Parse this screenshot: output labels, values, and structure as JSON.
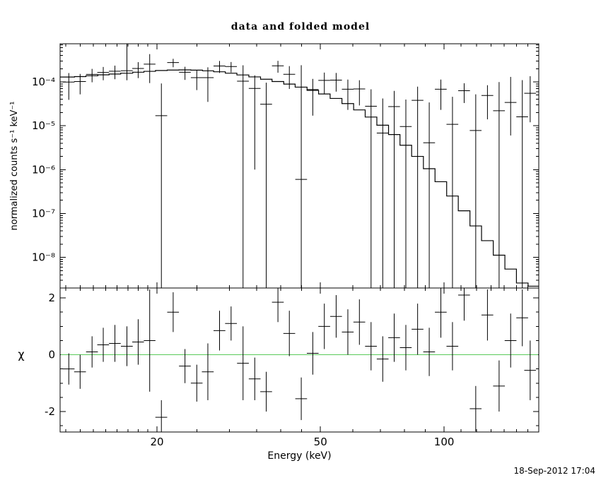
{
  "chart_data": {
    "type": "scatter",
    "title": "data and folded model",
    "xlabel": "Energy (keV)",
    "ylabel_top": "normalized counts s⁻¹ keV⁻¹",
    "ylabel_bottom": "χ",
    "timestamp": "18-Sep-2012 17:04",
    "x_scale": "log",
    "x_range": [
      11.62,
      170
    ],
    "x_ticks_labeled": [
      20,
      50,
      100
    ],
    "x_ticks_minor": [
      12,
      13,
      14,
      15,
      16,
      17,
      18,
      19,
      25,
      30,
      35,
      40,
      45,
      60,
      70,
      80,
      90,
      110,
      120,
      130,
      140,
      150,
      160
    ],
    "axis_color": "#000000",
    "top_panel": {
      "y_scale": "log",
      "y_range": [
        2e-09,
        0.00074
      ],
      "y_ticks_exponents": [
        -4,
        -5,
        -6,
        -7,
        -8
      ],
      "y_tick_labels": [
        "10⁻⁴",
        "10⁻⁵",
        "10⁻⁶",
        "10⁻⁷",
        "10⁻⁸"
      ],
      "model_color": "#000000",
      "points": [
        {
          "e": 12.2,
          "ew": 0.4,
          "y": 9.9e-05,
          "lo": 3.9e-05,
          "hi": 0.000159,
          "model": 0.000129
        },
        {
          "e": 13.0,
          "ew": 0.43,
          "y": 0.000102,
          "lo": 5.2e-05,
          "hi": 0.000152,
          "model": 0.000132
        },
        {
          "e": 13.9,
          "ew": 0.46,
          "y": 0.000148,
          "lo": 9.8e-05,
          "hi": 0.000198,
          "model": 0.000138
        },
        {
          "e": 14.8,
          "ew": 0.49,
          "y": 0.000164,
          "lo": 0.000109,
          "hi": 0.000219,
          "model": 0.000145
        },
        {
          "e": 15.8,
          "ew": 0.52,
          "y": 0.000175,
          "lo": 0.000115,
          "hi": 0.000235,
          "model": 0.000151
        },
        {
          "e": 16.9,
          "ew": 0.56,
          "y": 0.000179,
          "lo": 0.000109,
          "hi": 0.0008,
          "model": 0.000158
        },
        {
          "e": 18.0,
          "ew": 0.59,
          "y": 0.000202,
          "lo": 0.000122,
          "hi": 0.000282,
          "model": 0.000166
        },
        {
          "e": 19.2,
          "ew": 0.63,
          "y": 0.000254,
          "lo": 9.4e-05,
          "hi": 0.00043,
          "model": 0.000174
        },
        {
          "e": 20.5,
          "ew": 0.68,
          "y": 1.7e-05,
          "lo": null,
          "hi": 9.2e-05,
          "model": 0.000182
        },
        {
          "e": 21.9,
          "ew": 0.72,
          "y": 0.000276,
          "lo": 0.000216,
          "hi": 0.000336,
          "model": 0.000186
        },
        {
          "e": 23.4,
          "ew": 0.77,
          "y": 0.000166,
          "lo": 0.000111,
          "hi": 0.000221,
          "model": 0.000188
        },
        {
          "e": 25.0,
          "ew": 0.82,
          "y": 0.000125,
          "lo": 6.5e-05,
          "hi": 0.000185,
          "model": 0.000185
        },
        {
          "e": 26.6,
          "ew": 0.88,
          "y": 0.000125,
          "lo": 3.5e-05,
          "hi": 0.000215,
          "model": 0.000179
        },
        {
          "e": 28.4,
          "ew": 0.94,
          "y": 0.00023,
          "lo": 0.00016,
          "hi": 0.0003,
          "model": 0.00017
        },
        {
          "e": 30.3,
          "ew": 1.0,
          "y": 0.000224,
          "lo": 0.000164,
          "hi": 0.000284,
          "model": 0.000158
        },
        {
          "e": 32.4,
          "ew": 1.07,
          "y": 0.000104,
          "lo": null,
          "hi": 0.000239,
          "model": 0.000144
        },
        {
          "e": 34.6,
          "ew": 1.14,
          "y": 7.1e-05,
          "lo": 1e-06,
          "hi": 0.000141,
          "model": 0.00013
        },
        {
          "e": 36.9,
          "ew": 1.22,
          "y": 3.1e-05,
          "lo": null,
          "hi": 9.6e-05,
          "model": 0.000115
        },
        {
          "e": 39.4,
          "ew": 1.3,
          "y": 0.000232,
          "lo": 0.000162,
          "hi": 0.000302,
          "model": 0.000102
        },
        {
          "e": 42.0,
          "ew": 1.39,
          "y": 0.000149,
          "lo": 6.9e-05,
          "hi": 0.000229,
          "model": 8.9e-05
        },
        {
          "e": 44.9,
          "ew": 1.48,
          "y": 6e-07,
          "lo": null,
          "hi": 0.00024,
          "model": 7.6e-05
        },
        {
          "e": 47.9,
          "ew": 1.58,
          "y": 6.7e-05,
          "lo": 1.7e-05,
          "hi": 0.000117,
          "model": 6.4e-05
        },
        {
          "e": 51.1,
          "ew": 1.69,
          "y": 0.000108,
          "lo": 5.3e-05,
          "hi": 0.000163,
          "model": 5.3e-05
        },
        {
          "e": 54.6,
          "ew": 1.8,
          "y": 0.00011,
          "lo": 6e-05,
          "hi": 0.00016,
          "model": 4.2e-05
        },
        {
          "e": 58.3,
          "ew": 1.92,
          "y": 6.8e-05,
          "lo": 2.3e-05,
          "hi": 0.000113,
          "model": 3.2e-05
        },
        {
          "e": 62.2,
          "ew": 2.05,
          "y": 6.9e-05,
          "lo": 2.9e-05,
          "hi": 0.000109,
          "model": 2.3e-05
        },
        {
          "e": 66.4,
          "ew": 2.19,
          "y": 2.78e-05,
          "lo": null,
          "hi": 6.78e-05,
          "model": 1.58e-05
        },
        {
          "e": 70.9,
          "ew": 2.34,
          "y": 6.8e-06,
          "lo": null,
          "hi": 4.18e-05,
          "model": 1.03e-05
        },
        {
          "e": 75.6,
          "ew": 2.49,
          "y": 2.73e-05,
          "lo": null,
          "hi": 6.23e-05,
          "model": 6.3e-06
        },
        {
          "e": 80.7,
          "ew": 2.66,
          "y": 9.6e-06,
          "lo": null,
          "hi": 3.96e-05,
          "model": 3.6e-06
        },
        {
          "e": 86.2,
          "ew": 2.84,
          "y": 3.8e-05,
          "lo": null,
          "hi": 7.8e-05,
          "model": 2e-06
        },
        {
          "e": 92.0,
          "ew": 3.03,
          "y": 4.1e-06,
          "lo": null,
          "hi": 3.4e-05,
          "model": 1.05e-06
        },
        {
          "e": 98.2,
          "ew": 3.24,
          "y": 6.8e-05,
          "lo": 2.3e-05,
          "hi": 0.000113,
          "model": 5.3e-07
        },
        {
          "e": 104.8,
          "ew": 3.46,
          "y": 1.08e-05,
          "lo": null,
          "hi": 4.58e-05,
          "model": 2.5e-07
        },
        {
          "e": 111.9,
          "ew": 3.69,
          "y": 6.3e-05,
          "lo": 3.3e-05,
          "hi": 9.3e-05,
          "model": 1.15e-07
        },
        {
          "e": 119.4,
          "ew": 3.94,
          "y": 7.8e-06,
          "lo": null,
          "hi": 5.2e-05,
          "model": 5.2e-08
        },
        {
          "e": 127.5,
          "ew": 4.21,
          "y": 4.9e-05,
          "lo": 1.4e-05,
          "hi": 8.4e-05,
          "model": 2.4e-08
        },
        {
          "e": 136.1,
          "ew": 4.49,
          "y": 2.2e-05,
          "lo": null,
          "hi": 9.9e-05,
          "model": 1.12e-08
        },
        {
          "e": 145.2,
          "ew": 4.79,
          "y": 3.4e-05,
          "lo": 6e-06,
          "hi": 0.00013,
          "model": 5.4e-09
        },
        {
          "e": 155.0,
          "ew": 5.11,
          "y": 1.6e-05,
          "lo": null,
          "hi": 0.00011,
          "model": 2.6e-09
        },
        {
          "e": 162.0,
          "ew": 5.3,
          "y": 5.5e-05,
          "lo": 1.2e-05,
          "hi": 0.000135,
          "model": 2.2e-09
        }
      ]
    },
    "residual_panel": {
      "y_scale": "linear",
      "y_range": [
        -2.72,
        2.35
      ],
      "y_ticks_labeled": [
        -2,
        0,
        2
      ],
      "y_ticks_minor": [
        -2.5,
        -1.5,
        -1,
        -0.5,
        0.5,
        1,
        1.5
      ],
      "zero_line_color": "#59c959",
      "points": [
        {
          "e": 12.2,
          "ew": 0.4,
          "chi": -0.5,
          "err": 0.55
        },
        {
          "e": 13.0,
          "ew": 0.43,
          "chi": -0.6,
          "err": 0.6
        },
        {
          "e": 13.9,
          "ew": 0.46,
          "chi": 0.1,
          "err": 0.55
        },
        {
          "e": 14.8,
          "ew": 0.49,
          "chi": 0.35,
          "err": 0.6
        },
        {
          "e": 15.8,
          "ew": 0.52,
          "chi": 0.4,
          "err": 0.65
        },
        {
          "e": 16.9,
          "ew": 0.56,
          "chi": 0.3,
          "err": 0.7
        },
        {
          "e": 18.0,
          "ew": 0.59,
          "chi": 0.45,
          "err": 0.8
        },
        {
          "e": 19.2,
          "ew": 0.63,
          "chi": 0.5,
          "err": 1.8
        },
        {
          "e": 20.5,
          "ew": 0.68,
          "chi": -2.2,
          "err": 0.6
        },
        {
          "e": 21.9,
          "ew": 0.72,
          "chi": 1.5,
          "err": 0.7
        },
        {
          "e": 23.4,
          "ew": 0.77,
          "chi": -0.4,
          "err": 0.6
        },
        {
          "e": 25.0,
          "ew": 0.82,
          "chi": -1.0,
          "err": 0.65
        },
        {
          "e": 26.6,
          "ew": 0.88,
          "chi": -0.6,
          "err": 1.0
        },
        {
          "e": 28.4,
          "ew": 0.94,
          "chi": 0.85,
          "err": 0.7
        },
        {
          "e": 30.3,
          "ew": 1.0,
          "chi": 1.1,
          "err": 0.6
        },
        {
          "e": 32.4,
          "ew": 1.07,
          "chi": -0.3,
          "err": 1.3
        },
        {
          "e": 34.6,
          "ew": 1.14,
          "chi": -0.85,
          "err": 0.75
        },
        {
          "e": 36.9,
          "ew": 1.22,
          "chi": -1.3,
          "err": 0.7
        },
        {
          "e": 39.4,
          "ew": 1.3,
          "chi": 1.85,
          "err": 0.7
        },
        {
          "e": 42.0,
          "ew": 1.39,
          "chi": 0.75,
          "err": 0.8
        },
        {
          "e": 44.9,
          "ew": 1.48,
          "chi": -1.55,
          "err": 0.75
        },
        {
          "e": 47.9,
          "ew": 1.58,
          "chi": 0.05,
          "err": 0.75
        },
        {
          "e": 51.1,
          "ew": 1.69,
          "chi": 1.0,
          "err": 0.8
        },
        {
          "e": 54.6,
          "ew": 1.8,
          "chi": 1.35,
          "err": 0.75
        },
        {
          "e": 58.3,
          "ew": 1.92,
          "chi": 0.8,
          "err": 0.8
        },
        {
          "e": 62.2,
          "ew": 2.05,
          "chi": 1.15,
          "err": 0.8
        },
        {
          "e": 66.4,
          "ew": 2.19,
          "chi": 0.3,
          "err": 0.85
        },
        {
          "e": 70.9,
          "ew": 2.34,
          "chi": -0.15,
          "err": 0.8
        },
        {
          "e": 75.6,
          "ew": 2.49,
          "chi": 0.6,
          "err": 0.85
        },
        {
          "e": 80.7,
          "ew": 2.66,
          "chi": 0.25,
          "err": 0.8
        },
        {
          "e": 86.2,
          "ew": 2.84,
          "chi": 0.9,
          "err": 0.9
        },
        {
          "e": 92.0,
          "ew": 3.03,
          "chi": 0.1,
          "err": 0.85
        },
        {
          "e": 98.2,
          "ew": 3.24,
          "chi": 1.5,
          "err": 0.9
        },
        {
          "e": 104.8,
          "ew": 3.46,
          "chi": 0.3,
          "err": 0.85
        },
        {
          "e": 111.9,
          "ew": 3.69,
          "chi": 2.1,
          "err": 0.9
        },
        {
          "e": 119.4,
          "ew": 3.94,
          "chi": -1.9,
          "err": 0.8
        },
        {
          "e": 127.5,
          "ew": 4.21,
          "chi": 1.4,
          "err": 0.9
        },
        {
          "e": 136.1,
          "ew": 4.49,
          "chi": -1.1,
          "err": 0.9
        },
        {
          "e": 145.2,
          "ew": 4.79,
          "chi": 0.5,
          "err": 0.95
        },
        {
          "e": 155.0,
          "ew": 5.11,
          "chi": 1.3,
          "err": 1.0
        },
        {
          "e": 162.0,
          "ew": 5.3,
          "chi": -0.55,
          "err": 1.05
        }
      ]
    }
  }
}
